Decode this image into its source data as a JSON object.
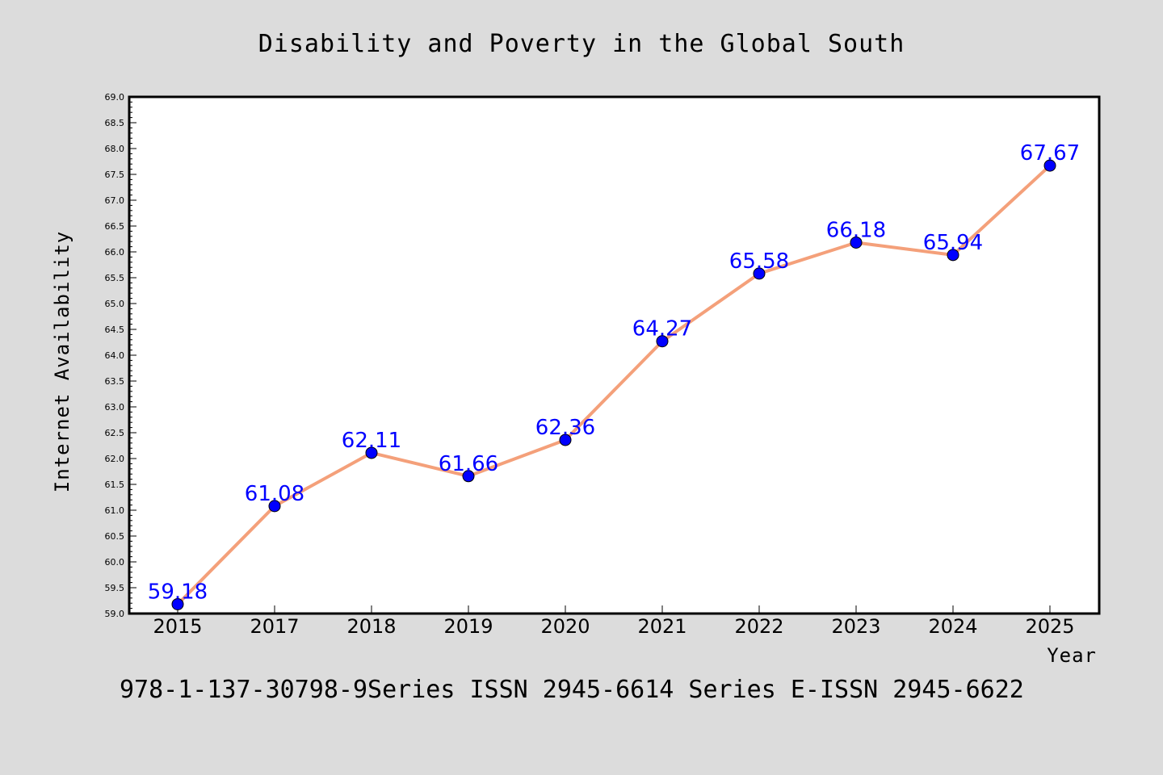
{
  "chart_data": {
    "type": "line",
    "title": "Disability and Poverty in the Global South",
    "xlabel": "Year",
    "ylabel": "Internet Availability",
    "categories": [
      "2015",
      "2017",
      "2018",
      "2019",
      "2020",
      "2021",
      "2022",
      "2023",
      "2024",
      "2025"
    ],
    "series": [
      {
        "values": [
          59.18,
          61.08,
          62.11,
          61.66,
          62.36,
          64.27,
          65.58,
          66.18,
          65.94,
          67.67
        ],
        "labels": [
          "59.18",
          "61.08",
          "62.11",
          "61.66",
          "62.36",
          "64.27",
          "65.58",
          "66.18",
          "65.94",
          "67.67"
        ],
        "line_color": "#f4a07a",
        "marker_color": "#0000ff"
      }
    ],
    "ylim": [
      59.0,
      69.0
    ],
    "yticks": [
      "59.0",
      "59.5",
      "60.0",
      "60.5",
      "61.0",
      "61.5",
      "62.0",
      "62.5",
      "63.0",
      "63.5",
      "64.0",
      "64.5",
      "65.0",
      "65.5",
      "66.0",
      "66.5",
      "67.0",
      "67.5",
      "68.0",
      "68.5",
      "69.0"
    ],
    "grid": false,
    "legend": "none"
  },
  "footer": "978-1-137-30798-9Series ISSN 2945-6614 Series E-ISSN 2945-6622",
  "colors": {
    "background": "#dcdcdc",
    "plot_background": "#ffffff",
    "axis": "#000000"
  }
}
